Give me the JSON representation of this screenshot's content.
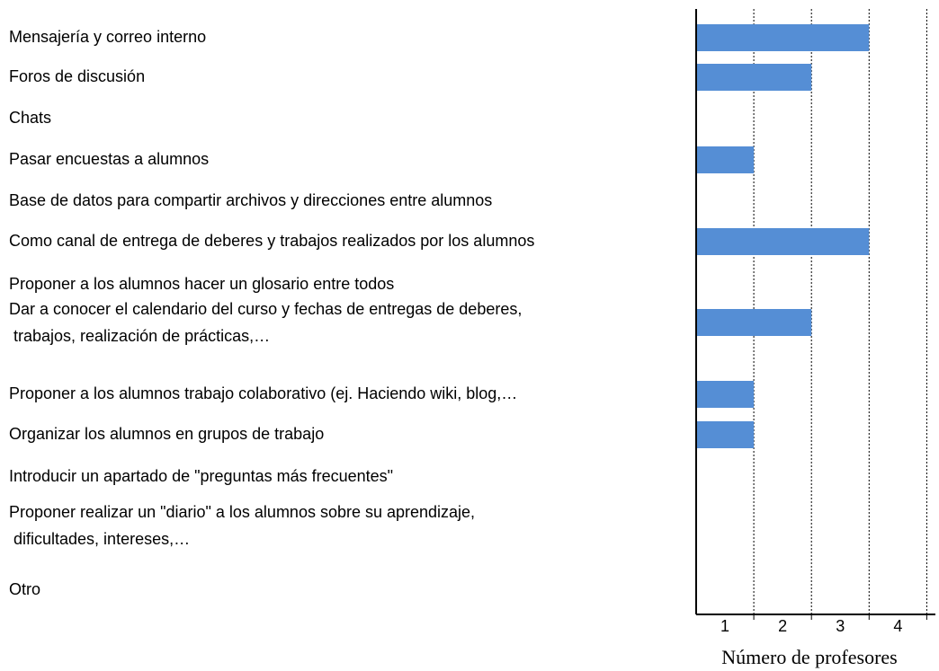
{
  "chart_data": {
    "type": "barh",
    "categories": [
      "Mensajería y correo interno",
      "Foros de discusión",
      "Chats",
      "Pasar encuestas a alumnos",
      "Base de datos para compartir archivos y direcciones entre alumnos",
      "Como canal de entrega de deberes y trabajos realizados por los alumnos",
      "Proponer a los alumnos hacer un glosario entre todos",
      "Dar a conocer el calendario del curso y fechas de entregas de deberes,\n trabajos, realización de prácticas,…",
      "Proponer a los alumnos trabajo colaborativo (ej. Haciendo wiki, blog,…",
      "Organizar los alumnos en grupos de trabajo",
      "Introducir un apartado de \"preguntas más frecuentes\"",
      "Proponer realizar un \"diario\" a los alumnos sobre su aprendizaje,\n dificultades, intereses,…",
      "Otro"
    ],
    "values": [
      3,
      2,
      0,
      1,
      0,
      3,
      0,
      2,
      1,
      1,
      0,
      0,
      0
    ],
    "color": "#558ed5",
    "xlabel": "Número de profesores",
    "xlim": [
      0,
      4.15
    ],
    "xticks": [
      1,
      2,
      3,
      4
    ],
    "grid": true
  }
}
